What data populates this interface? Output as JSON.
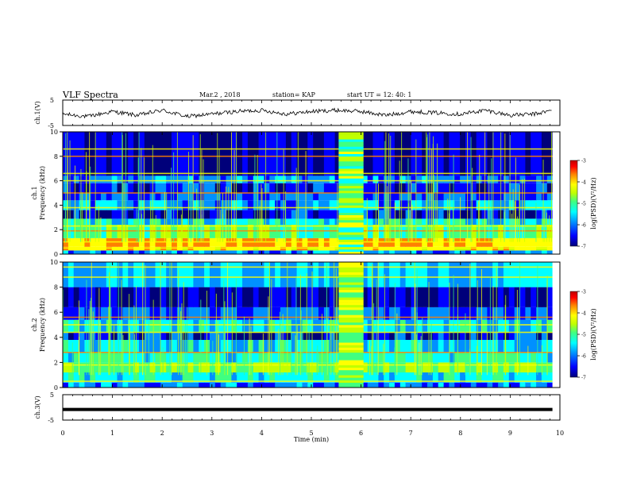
{
  "header": {
    "title": "VLF Spectra",
    "date": "Mar.2 , 2018",
    "station": "station= KAP",
    "start": "start UT = 12: 40: 1"
  },
  "chart_data": [
    {
      "id": "ch1-waveform",
      "type": "line",
      "ylabel": "ch.1(V)",
      "ylim": [
        -5,
        5
      ],
      "yticks": [
        "5",
        "-5"
      ],
      "xlim": [
        0,
        10
      ],
      "x_end": 9.85,
      "series": [
        {
          "x": [
            0,
            0.5,
            1,
            1.5,
            2,
            2.5,
            3,
            3.5,
            4,
            4.5,
            5,
            5.5,
            6,
            6.5,
            7,
            7.5,
            8,
            8.5,
            9,
            9.5,
            9.85
          ],
          "values": [
            -0.5,
            -1.5,
            0.5,
            -1.0,
            1.0,
            -1.5,
            -0.5,
            0.5,
            1.0,
            -0.5,
            0.5,
            1.0,
            0.5,
            -1.0,
            0.5,
            0.0,
            -0.5,
            1.0,
            -1.0,
            -0.5,
            1.0
          ]
        }
      ],
      "color": "#000000"
    },
    {
      "id": "ch1-spectrogram",
      "type": "heatmap",
      "ylabel": "Frequency (kHz)",
      "channel_label": "ch.1",
      "ylim": [
        0,
        10
      ],
      "yticks": [
        "0",
        "2",
        "4",
        "6",
        "8",
        "10"
      ],
      "xlim": [
        0,
        10
      ],
      "x_end": 9.85,
      "bands_khz": [
        {
          "from": 0,
          "to": 0.3,
          "level": -6.0
        },
        {
          "from": 0.3,
          "to": 0.6,
          "level": -4.5
        },
        {
          "from": 0.6,
          "to": 1.3,
          "level": -4.2
        },
        {
          "from": 1.3,
          "to": 2.4,
          "level": -5.2
        },
        {
          "from": 2.4,
          "to": 2.9,
          "level": -5.6
        },
        {
          "from": 2.9,
          "to": 3.6,
          "level": -6.5
        },
        {
          "from": 3.6,
          "to": 4.4,
          "level": -5.9
        },
        {
          "from": 4.4,
          "to": 5.0,
          "level": -6.2
        },
        {
          "from": 5.0,
          "to": 5.8,
          "level": -6.4
        },
        {
          "from": 5.8,
          "to": 6.4,
          "level": -6.1
        },
        {
          "from": 6.4,
          "to": 10,
          "level": -6.6
        }
      ],
      "lines_khz": [
        0.5,
        1.0,
        1.9,
        2.3,
        3.8,
        5.0,
        6.0,
        6.6,
        8.0,
        8.6
      ],
      "burst": {
        "t_start": 5.55,
        "t_end": 6.05,
        "level": -5.0
      }
    },
    {
      "id": "ch2-spectrogram",
      "type": "heatmap",
      "ylabel": "Frequency (kHz)",
      "channel_label": "ch.2",
      "ylim": [
        0,
        10
      ],
      "yticks": [
        "0",
        "2",
        "4",
        "6",
        "8",
        "10"
      ],
      "xlim": [
        0,
        10
      ],
      "x_end": 9.85,
      "bands_khz": [
        {
          "from": 0,
          "to": 0.4,
          "level": -6.0
        },
        {
          "from": 0.4,
          "to": 1.2,
          "level": -5.6
        },
        {
          "from": 1.2,
          "to": 2.0,
          "level": -5.0
        },
        {
          "from": 2.0,
          "to": 2.8,
          "level": -5.5
        },
        {
          "from": 2.8,
          "to": 3.8,
          "level": -5.7
        },
        {
          "from": 3.8,
          "to": 4.4,
          "level": -6.4
        },
        {
          "from": 4.4,
          "to": 5.4,
          "level": -5.6
        },
        {
          "from": 5.4,
          "to": 6.4,
          "level": -6.2
        },
        {
          "from": 6.4,
          "to": 8.0,
          "level": -6.6
        },
        {
          "from": 8.0,
          "to": 10,
          "level": -5.8
        }
      ],
      "lines_khz": [
        0.5,
        1.8,
        2.8,
        4.4,
        5.0,
        5.6,
        8.8,
        9.6
      ],
      "burst": {
        "t_start": 5.55,
        "t_end": 6.05,
        "level": -4.8
      }
    },
    {
      "id": "ch3-waveform",
      "type": "line",
      "ylabel": "ch.3(V)",
      "ylim": [
        -5,
        5
      ],
      "yticks": [
        "5",
        "-5"
      ],
      "xlim": [
        0,
        10
      ],
      "x_end": 9.85,
      "series": [
        {
          "x": [
            0,
            9.85
          ],
          "values": [
            -0.8,
            -0.8
          ]
        }
      ],
      "color": "#000000"
    }
  ],
  "x_axis": {
    "label": "Time (min)",
    "ticks": [
      "0",
      "1",
      "2",
      "3",
      "4",
      "5",
      "6",
      "7",
      "8",
      "9",
      "10"
    ]
  },
  "colorbars": [
    {
      "id": "colorbar-ch1",
      "label": "log(PSD)(V²/Hz)",
      "ticks": [
        "-3",
        "-4",
        "-5",
        "-6",
        "-7"
      ],
      "range": [
        -7,
        -3
      ]
    },
    {
      "id": "colorbar-ch2",
      "label": "log(PSD)(V²/Hz)",
      "ticks": [
        "-3",
        "-4",
        "-5",
        "-6",
        "-7"
      ],
      "range": [
        -7,
        -3
      ]
    }
  ],
  "colormap": [
    "#00007a",
    "#0000ff",
    "#0090ff",
    "#00ffff",
    "#40ff80",
    "#c0ff00",
    "#ffff00",
    "#ff8000",
    "#ff0000",
    "#c00000"
  ]
}
